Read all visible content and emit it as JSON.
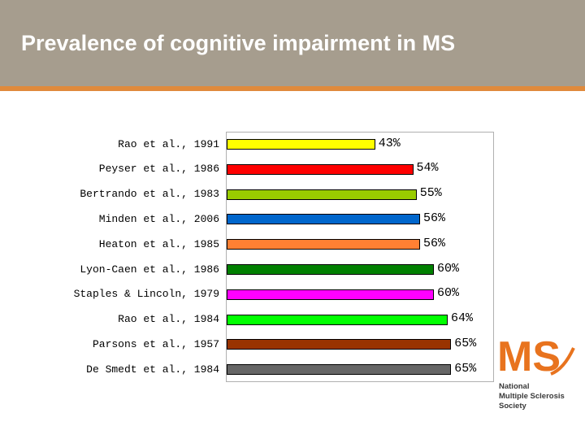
{
  "slide": {
    "title": "Prevalence of cognitive impairment in MS"
  },
  "logo": {
    "letters": "MS",
    "line1": "National",
    "line2": "Multiple Sclerosis",
    "line3": "Society",
    "color": "#e8731e"
  },
  "chart_data": {
    "type": "bar",
    "orientation": "horizontal",
    "title": "",
    "xlabel": "",
    "ylabel": "",
    "xlim": [
      0,
      100
    ],
    "grid": false,
    "legend": "none",
    "categories": [
      "Rao et al., 1991",
      "Peyser et al., 1986",
      "Bertrando et al., 1983",
      "Minden et al., 2006",
      "Heaton et al., 1985",
      "Lyon-Caen et al., 1986",
      "Staples & Lincoln, 1979",
      "Rao et al., 1984",
      "Parsons et al., 1957",
      "De Smedt et al., 1984"
    ],
    "values": [
      43,
      54,
      55,
      56,
      56,
      60,
      60,
      64,
      65,
      65
    ],
    "value_labels": [
      "43%",
      "54%",
      "55%",
      "56%",
      "56%",
      "60%",
      "60%",
      "64%",
      "65%",
      "65%"
    ],
    "colors": [
      "#ffff00",
      "#ff0000",
      "#99cc00",
      "#0066cc",
      "#ff8033",
      "#008000",
      "#ff00ff",
      "#00ff00",
      "#993300",
      "#666666"
    ]
  }
}
